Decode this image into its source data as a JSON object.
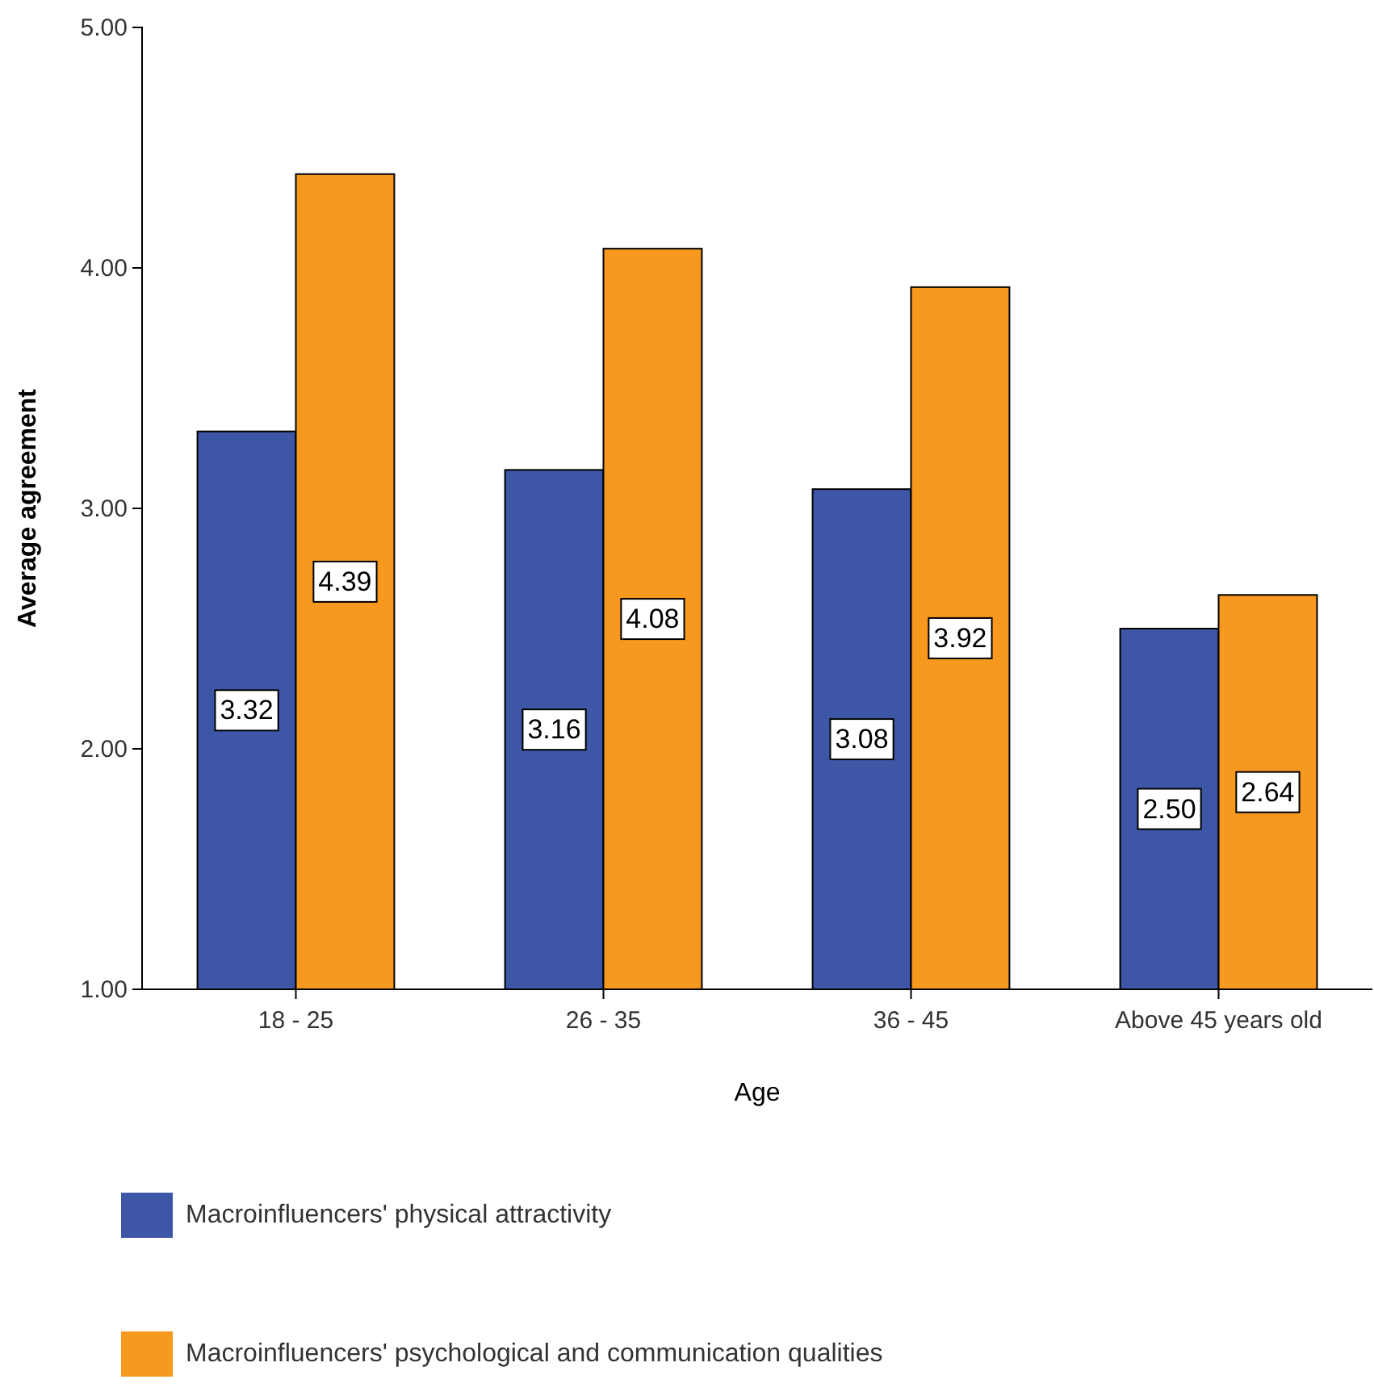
{
  "chart_data": {
    "type": "bar",
    "xlabel": "Age",
    "ylabel": "Average agreement",
    "categories": [
      "18 - 25",
      "26 - 35",
      "36 - 45",
      "Above 45 years old"
    ],
    "series": [
      {
        "name": "Macroinfluencers' physical attractivity",
        "color": "#3d56a6",
        "values": [
          3.32,
          3.16,
          3.08,
          2.5
        ],
        "value_labels": [
          "3.32",
          "3.16",
          "3.08",
          "2.50"
        ]
      },
      {
        "name": "Macroinfluencers' psychological and communication qualities",
        "color": "#f7981f",
        "values": [
          4.39,
          4.08,
          3.92,
          2.64
        ],
        "value_labels": [
          "4.39",
          "4.08",
          "3.92",
          "2.64"
        ]
      }
    ],
    "ylim": [
      1,
      5
    ],
    "yticks": [
      {
        "value": 1,
        "label": "1.00"
      },
      {
        "value": 2,
        "label": "2.00"
      },
      {
        "value": 3,
        "label": "3.00"
      },
      {
        "value": 4,
        "label": "4.00"
      },
      {
        "value": 5,
        "label": "5.00"
      }
    ],
    "grid": false,
    "legend": "bottom"
  }
}
